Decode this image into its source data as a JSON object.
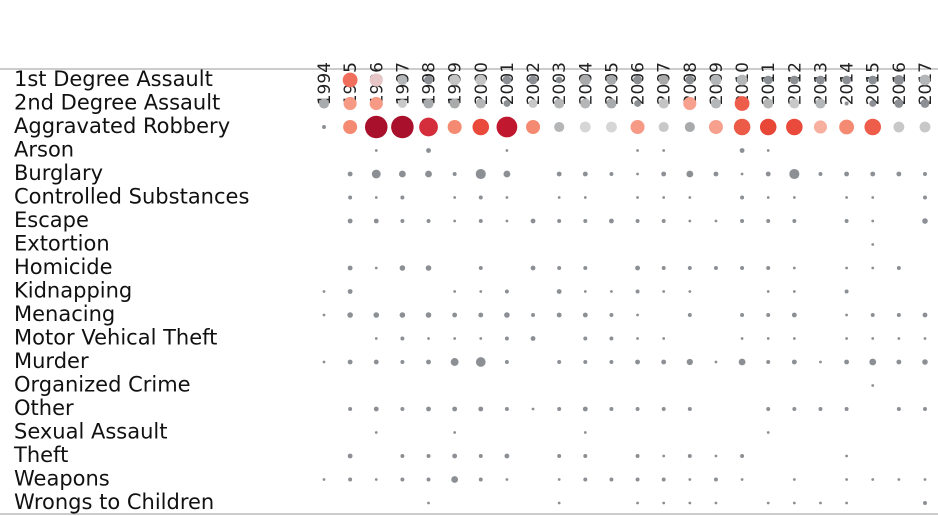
{
  "chart_data": {
    "type": "bubble_matrix",
    "categories": [
      "1994",
      "1995",
      "1996",
      "1997",
      "1998",
      "1999",
      "2000",
      "2001",
      "2002",
      "2003",
      "2004",
      "2005",
      "2006",
      "2007",
      "2008",
      "2009",
      "2010",
      "2011",
      "2012",
      "2013",
      "2014",
      "2015",
      "2016",
      "2017"
    ],
    "color": "#8c9094",
    "series": [
      {
        "name": "1st Degree Assault",
        "values": [
          null,
          28,
          22,
          13,
          10,
          15,
          15,
          10,
          10,
          6,
          15,
          13,
          10,
          13,
          10,
          15,
          15,
          10,
          10,
          10,
          10,
          10,
          13,
          15
        ],
        "colors": [
          "#8c9094",
          "#f06e5c",
          "#e6c6c6",
          "#b4b6b8",
          "#8c9094",
          "#c4c4c4",
          "#c4c4c4",
          "#8c9094",
          "#8c9094",
          "#8c9094",
          "#a8aaac",
          "#a8aaac",
          "#8c9094",
          "#a8aaac",
          "#8c9094",
          "#b4b6b8",
          "#b4b6b8",
          "#8c9094",
          "#8c9094",
          "#8c9094",
          "#8c9094",
          "#8c9094",
          "#8c9094",
          "#b4b6b8"
        ]
      },
      {
        "name": "2nd Degree Assault",
        "values": [
          13,
          22,
          22,
          10,
          13,
          13,
          13,
          6,
          10,
          13,
          13,
          13,
          6,
          13,
          22,
          13,
          28,
          13,
          13,
          13,
          2,
          6,
          10,
          10
        ],
        "colors": [
          "#a8aaac",
          "#f79a85",
          "#f79a85",
          "#c8c8c8",
          "#a8aaac",
          "#a8aaac",
          "#b4b6b8",
          "#8c9094",
          "#c8c8c8",
          "#b4b6b8",
          "#b4b6b8",
          "#a8aaac",
          "#8c9094",
          "#c4c4c4",
          "#f7a08e",
          "#b4b6b8",
          "#ee5c4a",
          "#b4b6b8",
          "#c8c8c8",
          "#b4b6b8",
          "#8c9094",
          "#8c9094",
          "#8c9094",
          "#8c9094"
        ]
      },
      {
        "name": "Aggravated Robbery",
        "values": [
          2,
          25,
          65,
          65,
          45,
          25,
          35,
          55,
          25,
          13,
          15,
          15,
          25,
          13,
          13,
          25,
          35,
          35,
          35,
          22,
          28,
          35,
          15,
          15
        ],
        "colors": [
          "#8c9094",
          "#f58a72",
          "#a8102c",
          "#a8102c",
          "#d42d3c",
          "#f58a72",
          "#ea4a3c",
          "#c0182e",
          "#f58a72",
          "#b4b6b8",
          "#d6d6d6",
          "#d6d6d6",
          "#f79a85",
          "#c8c8c8",
          "#a8aaac",
          "#f7a08e",
          "#ec5a48",
          "#e84636",
          "#ea4a3c",
          "#f7b0a0",
          "#f58a72",
          "#ee5c4a",
          "#c8c8c8",
          "#c8c8c8"
        ]
      },
      {
        "name": "Arson",
        "values": [
          null,
          null,
          1,
          null,
          3,
          null,
          null,
          1,
          null,
          null,
          null,
          null,
          1,
          1,
          null,
          null,
          3,
          1,
          null,
          null,
          null,
          null,
          null,
          null
        ]
      },
      {
        "name": "Burglary",
        "values": [
          null,
          3,
          10,
          6,
          6,
          2,
          13,
          6,
          null,
          3,
          3,
          2,
          1,
          3,
          6,
          3,
          1,
          3,
          13,
          2,
          3,
          3,
          3,
          2
        ]
      },
      {
        "name": "Controlled Substances",
        "values": [
          null,
          2,
          1,
          2,
          null,
          1,
          2,
          1,
          null,
          1,
          1,
          null,
          1,
          1,
          1,
          null,
          2,
          1,
          1,
          null,
          1,
          1,
          null,
          2
        ]
      },
      {
        "name": "Escape",
        "values": [
          null,
          3,
          3,
          2,
          2,
          1,
          2,
          1,
          3,
          2,
          2,
          3,
          2,
          2,
          1,
          1,
          2,
          2,
          2,
          null,
          2,
          1,
          null,
          4
        ]
      },
      {
        "name": "Extortion",
        "values": [
          null,
          null,
          null,
          null,
          null,
          null,
          null,
          null,
          null,
          null,
          null,
          null,
          null,
          null,
          null,
          null,
          null,
          null,
          null,
          null,
          null,
          1,
          null,
          null
        ]
      },
      {
        "name": "Homicide",
        "values": [
          null,
          3,
          1,
          4,
          4,
          null,
          2,
          null,
          3,
          2,
          2,
          null,
          3,
          2,
          2,
          2,
          2,
          2,
          1,
          null,
          1,
          1,
          2,
          null
        ]
      },
      {
        "name": "Kidnapping",
        "values": [
          1,
          3,
          null,
          null,
          null,
          1,
          1,
          2,
          null,
          3,
          1,
          1,
          2,
          1,
          1,
          null,
          null,
          1,
          1,
          null,
          2,
          null,
          null,
          null
        ]
      },
      {
        "name": "Menacing",
        "values": [
          1,
          4,
          4,
          4,
          4,
          3,
          3,
          4,
          2,
          3,
          3,
          2,
          1,
          null,
          2,
          null,
          2,
          2,
          3,
          null,
          1,
          2,
          2,
          3
        ]
      },
      {
        "name": "Motor Vehical Theft",
        "values": [
          null,
          null,
          1,
          2,
          1,
          1,
          1,
          2,
          3,
          null,
          2,
          2,
          1,
          1,
          null,
          null,
          1,
          1,
          1,
          null,
          1,
          1,
          1,
          1
        ]
      },
      {
        "name": "Murder",
        "values": [
          1,
          3,
          3,
          2,
          3,
          8,
          12,
          2,
          null,
          2,
          2,
          2,
          3,
          3,
          5,
          1,
          6,
          2,
          3,
          1,
          3,
          6,
          3,
          4
        ]
      },
      {
        "name": "Organized Crime",
        "values": [
          null,
          null,
          null,
          null,
          null,
          null,
          null,
          null,
          null,
          null,
          null,
          null,
          null,
          null,
          null,
          null,
          null,
          null,
          null,
          null,
          null,
          1,
          null,
          null
        ]
      },
      {
        "name": "Other",
        "values": [
          null,
          2,
          3,
          2,
          3,
          3,
          3,
          2,
          1,
          2,
          3,
          2,
          2,
          2,
          2,
          null,
          null,
          2,
          2,
          2,
          2,
          null,
          2,
          2
        ]
      },
      {
        "name": "Sexual Assault",
        "values": [
          null,
          null,
          1,
          null,
          null,
          1,
          null,
          null,
          null,
          null,
          1,
          null,
          null,
          null,
          null,
          null,
          null,
          1,
          null,
          null,
          null,
          null,
          null,
          null
        ]
      },
      {
        "name": "Theft",
        "values": [
          null,
          3,
          null,
          2,
          2,
          3,
          2,
          3,
          null,
          2,
          2,
          null,
          2,
          1,
          2,
          1,
          2,
          null,
          null,
          null,
          1,
          null,
          null,
          null
        ]
      },
      {
        "name": "Weapons",
        "values": [
          1,
          2,
          1,
          2,
          2,
          6,
          2,
          1,
          null,
          1,
          2,
          2,
          2,
          2,
          1,
          2,
          1,
          null,
          1,
          null,
          1,
          1,
          1,
          1
        ]
      },
      {
        "name": "Wrongs to Children",
        "values": [
          null,
          null,
          null,
          null,
          1,
          null,
          null,
          null,
          null,
          1,
          null,
          null,
          1,
          1,
          1,
          1,
          null,
          1,
          1,
          1,
          1,
          null,
          null,
          2
        ]
      }
    ]
  }
}
